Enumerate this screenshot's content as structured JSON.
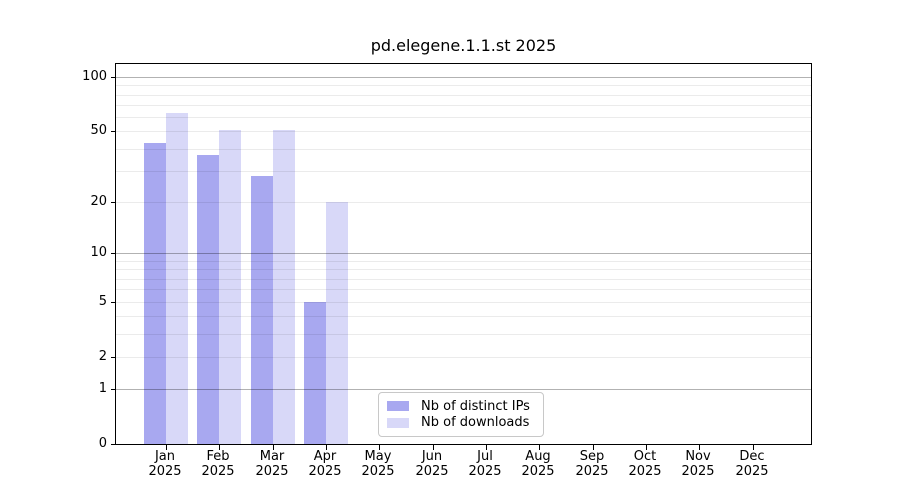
{
  "title": "pd.elegene.1.1.st 2025",
  "chart_data": {
    "type": "bar",
    "title": "pd.elegene.1.1.st 2025",
    "categories": [
      "Jan",
      "Feb",
      "Mar",
      "Apr",
      "May",
      "Jun",
      "Jul",
      "Aug",
      "Sep",
      "Oct",
      "Nov",
      "Dec"
    ],
    "year_label": "2025",
    "series": [
      {
        "name": "Nb of distinct IPs",
        "color": "#a8a8f0",
        "values": [
          43,
          37,
          28,
          5,
          0,
          0,
          0,
          0,
          0,
          0,
          0,
          0
        ]
      },
      {
        "name": "Nb of downloads",
        "color": "#d8d8f8",
        "values": [
          63,
          51,
          51,
          20,
          0,
          0,
          0,
          0,
          0,
          0,
          0,
          0
        ]
      }
    ],
    "xlabel": "",
    "ylabel": "",
    "yscale": "log1p",
    "ylim": [
      0,
      118
    ],
    "yticks": [
      0,
      1,
      2,
      5,
      10,
      20,
      50,
      100
    ],
    "grid_minor": [
      2,
      3,
      4,
      5,
      6,
      7,
      8,
      9,
      20,
      30,
      40,
      50,
      60,
      70,
      80,
      90
    ],
    "grid_major": [
      1,
      10,
      100
    ],
    "grid": "on",
    "legend_position": "lower center"
  }
}
